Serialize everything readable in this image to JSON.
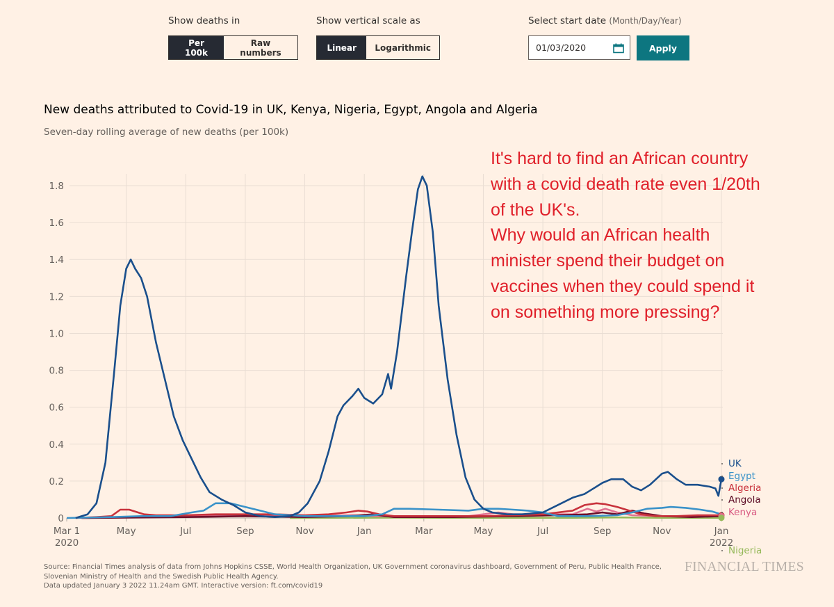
{
  "controls": {
    "deaths_label": "Show deaths in",
    "deaths_options": [
      "Per 100k",
      "Raw numbers"
    ],
    "deaths_selected": "Per 100k",
    "scale_label": "Show vertical scale as",
    "scale_options": [
      "Linear",
      "Logarithmic"
    ],
    "scale_selected": "Linear",
    "date_label": "Select start date",
    "date_hint": "(Month/Day/Year)",
    "date_value": "01/03/2020",
    "calendar_icon": "calendar-icon",
    "apply_label": "Apply"
  },
  "annotation": "It's hard to find an African country\nwith a covid death rate even 1/20th\nof the UK's.\nWhy would an African health\nminister spend their budget on\nvaccines when they could spend it\non something more pressing?",
  "footer": {
    "source_lines": [
      "Source: Financial Times analysis of data from Johns Hopkins CSSE, World Health Organization, UK Government coronavirus dashboard, Government of Peru, Public Health France,",
      "Slovenian Ministry of Health and the Swedish Public Health Agency.",
      "Data updated January 3 2022 11.24am GMT. Interactive version: ft.com/covid19"
    ],
    "logo": "FINANCIAL TIMES"
  },
  "chart_data": {
    "type": "line",
    "title": "New deaths attributed to Covid-19 in UK, Kenya, Nigeria, Egypt, Angola and Algeria",
    "subtitle": "Seven-day rolling average of new deaths (per 100k)",
    "xlabel": "",
    "ylabel": "",
    "ylim": [
      0,
      1.8
    ],
    "yticks": [
      0,
      0.2,
      0.4,
      0.6,
      0.8,
      1.0,
      1.2,
      1.4,
      1.6,
      1.8
    ],
    "ytick_labels": [
      "0",
      "0.2",
      "0.4",
      "0.6",
      "0.8",
      "1.0",
      "1.2",
      "1.4",
      "1.6",
      "1.8"
    ],
    "x_unit": "months since Mar 1 2020",
    "xlim": [
      0,
      22
    ],
    "xticks": [
      0,
      2,
      4,
      6,
      8,
      10,
      12,
      14,
      16,
      18,
      20,
      22
    ],
    "xtick_labels": [
      [
        "Mar 1",
        "2020"
      ],
      [
        "May"
      ],
      [
        "Jul"
      ],
      [
        "Sep"
      ],
      [
        "Nov"
      ],
      [
        "Jan"
      ],
      [
        "Mar"
      ],
      [
        "May"
      ],
      [
        "Jul"
      ],
      [
        "Sep"
      ],
      [
        "Nov"
      ],
      [
        "Jan",
        "2022"
      ]
    ],
    "grid": true,
    "legend": "right-end labels",
    "series": [
      {
        "name": "UK",
        "color": "#1a4f8c",
        "label_color": "#1a4f8c",
        "endpoint_marker": true,
        "points": [
          [
            0.3,
            0
          ],
          [
            0.7,
            0.02
          ],
          [
            1.0,
            0.08
          ],
          [
            1.3,
            0.3
          ],
          [
            1.6,
            0.8
          ],
          [
            1.8,
            1.15
          ],
          [
            2.0,
            1.35
          ],
          [
            2.15,
            1.4
          ],
          [
            2.3,
            1.35
          ],
          [
            2.5,
            1.3
          ],
          [
            2.7,
            1.2
          ],
          [
            3.0,
            0.95
          ],
          [
            3.3,
            0.75
          ],
          [
            3.6,
            0.55
          ],
          [
            3.9,
            0.42
          ],
          [
            4.2,
            0.32
          ],
          [
            4.5,
            0.22
          ],
          [
            4.8,
            0.14
          ],
          [
            5.2,
            0.1
          ],
          [
            5.6,
            0.07
          ],
          [
            6.0,
            0.03
          ],
          [
            6.5,
            0.01
          ],
          [
            7.0,
            0.005
          ],
          [
            7.5,
            0.01
          ],
          [
            7.8,
            0.03
          ],
          [
            8.1,
            0.08
          ],
          [
            8.5,
            0.2
          ],
          [
            8.8,
            0.36
          ],
          [
            9.1,
            0.55
          ],
          [
            9.3,
            0.61
          ],
          [
            9.6,
            0.66
          ],
          [
            9.8,
            0.7
          ],
          [
            10.0,
            0.65
          ],
          [
            10.3,
            0.62
          ],
          [
            10.6,
            0.67
          ],
          [
            10.8,
            0.78
          ],
          [
            10.9,
            0.7
          ],
          [
            11.1,
            0.9
          ],
          [
            11.4,
            1.3
          ],
          [
            11.6,
            1.55
          ],
          [
            11.8,
            1.78
          ],
          [
            11.95,
            1.85
          ],
          [
            12.1,
            1.8
          ],
          [
            12.3,
            1.55
          ],
          [
            12.5,
            1.15
          ],
          [
            12.8,
            0.75
          ],
          [
            13.1,
            0.45
          ],
          [
            13.4,
            0.22
          ],
          [
            13.7,
            0.1
          ],
          [
            14.0,
            0.05
          ],
          [
            14.3,
            0.03
          ],
          [
            14.8,
            0.02
          ],
          [
            15.3,
            0.02
          ],
          [
            16.0,
            0.03
          ],
          [
            16.5,
            0.07
          ],
          [
            17.0,
            0.11
          ],
          [
            17.4,
            0.13
          ],
          [
            17.6,
            0.15
          ],
          [
            17.8,
            0.17
          ],
          [
            18.0,
            0.19
          ],
          [
            18.3,
            0.21
          ],
          [
            18.7,
            0.21
          ],
          [
            19.0,
            0.17
          ],
          [
            19.3,
            0.15
          ],
          [
            19.6,
            0.18
          ],
          [
            20.0,
            0.24
          ],
          [
            20.2,
            0.25
          ],
          [
            20.5,
            0.21
          ],
          [
            20.8,
            0.18
          ],
          [
            21.2,
            0.18
          ],
          [
            21.6,
            0.17
          ],
          [
            21.8,
            0.16
          ],
          [
            21.9,
            0.12
          ],
          [
            22.0,
            0.21
          ]
        ]
      },
      {
        "name": "Egypt",
        "color": "#3a92c9",
        "label_color": "#3a92c9",
        "endpoint_marker": false,
        "points": [
          [
            0,
            0
          ],
          [
            1.5,
            0.005
          ],
          [
            2.5,
            0.01
          ],
          [
            3.5,
            0.01
          ],
          [
            4.2,
            0.03
          ],
          [
            4.6,
            0.04
          ],
          [
            5.0,
            0.08
          ],
          [
            5.5,
            0.08
          ],
          [
            6.0,
            0.06
          ],
          [
            6.5,
            0.04
          ],
          [
            7.0,
            0.02
          ],
          [
            8.0,
            0.01
          ],
          [
            9.0,
            0.01
          ],
          [
            10.0,
            0.01
          ],
          [
            10.6,
            0.02
          ],
          [
            11.0,
            0.05
          ],
          [
            11.5,
            0.05
          ],
          [
            12.5,
            0.045
          ],
          [
            13.5,
            0.04
          ],
          [
            14.0,
            0.05
          ],
          [
            14.5,
            0.05
          ],
          [
            15.0,
            0.045
          ],
          [
            15.5,
            0.04
          ],
          [
            16.0,
            0.03
          ],
          [
            16.5,
            0.01
          ],
          [
            17.5,
            0.01
          ],
          [
            18.5,
            0.015
          ],
          [
            19.0,
            0.03
          ],
          [
            19.5,
            0.05
          ],
          [
            20.0,
            0.055
          ],
          [
            20.3,
            0.06
          ],
          [
            20.8,
            0.055
          ],
          [
            21.3,
            0.045
          ],
          [
            21.7,
            0.035
          ],
          [
            22.0,
            0.02
          ]
        ]
      },
      {
        "name": "Algeria",
        "color": "#c8323c",
        "label_color": "#c8323c",
        "endpoint_marker": true,
        "points": [
          [
            0.3,
            0
          ],
          [
            1.0,
            0.005
          ],
          [
            1.5,
            0.01
          ],
          [
            1.8,
            0.045
          ],
          [
            2.1,
            0.045
          ],
          [
            2.6,
            0.02
          ],
          [
            3.0,
            0.015
          ],
          [
            4.0,
            0.015
          ],
          [
            5.0,
            0.02
          ],
          [
            6.0,
            0.02
          ],
          [
            7.0,
            0.02
          ],
          [
            8.0,
            0.015
          ],
          [
            8.8,
            0.02
          ],
          [
            9.4,
            0.03
          ],
          [
            9.8,
            0.04
          ],
          [
            10.1,
            0.035
          ],
          [
            10.5,
            0.02
          ],
          [
            11.0,
            0.01
          ],
          [
            12.0,
            0.01
          ],
          [
            13.0,
            0.01
          ],
          [
            14.0,
            0.01
          ],
          [
            15.0,
            0.015
          ],
          [
            16.0,
            0.02
          ],
          [
            17.0,
            0.04
          ],
          [
            17.4,
            0.07
          ],
          [
            17.8,
            0.08
          ],
          [
            18.1,
            0.075
          ],
          [
            18.5,
            0.06
          ],
          [
            18.9,
            0.04
          ],
          [
            19.3,
            0.02
          ],
          [
            19.8,
            0.01
          ],
          [
            20.5,
            0.01
          ],
          [
            21.2,
            0.015
          ],
          [
            22.0,
            0.015
          ]
        ]
      },
      {
        "name": "Angola",
        "color": "#6e0f2a",
        "label_color": "#5a0a24",
        "endpoint_marker": false,
        "points": [
          [
            0.5,
            0
          ],
          [
            2.0,
            0.002
          ],
          [
            4.0,
            0.005
          ],
          [
            6.0,
            0.01
          ],
          [
            8.0,
            0.005
          ],
          [
            9.5,
            0.01
          ],
          [
            10.3,
            0.02
          ],
          [
            11.0,
            0.005
          ],
          [
            13.0,
            0.005
          ],
          [
            15.0,
            0.01
          ],
          [
            16.5,
            0.015
          ],
          [
            17.5,
            0.02
          ],
          [
            18.0,
            0.03
          ],
          [
            18.5,
            0.02
          ],
          [
            19.0,
            0.04
          ],
          [
            19.4,
            0.025
          ],
          [
            20.0,
            0.01
          ],
          [
            21.0,
            0.005
          ],
          [
            22.0,
            0.01
          ]
        ]
      },
      {
        "name": "Kenya",
        "color": "#e07191",
        "label_color": "#d85a82",
        "endpoint_marker": true,
        "points": [
          [
            0.5,
            0
          ],
          [
            2.5,
            0.005
          ],
          [
            4.5,
            0.01
          ],
          [
            6.0,
            0.012
          ],
          [
            8.0,
            0.01
          ],
          [
            9.5,
            0.015
          ],
          [
            10.5,
            0.01
          ],
          [
            12.0,
            0.005
          ],
          [
            13.5,
            0.01
          ],
          [
            14.5,
            0.03
          ],
          [
            15.0,
            0.02
          ],
          [
            16.0,
            0.02
          ],
          [
            17.0,
            0.02
          ],
          [
            17.5,
            0.05
          ],
          [
            17.8,
            0.035
          ],
          [
            18.1,
            0.05
          ],
          [
            18.5,
            0.03
          ],
          [
            19.0,
            0.015
          ],
          [
            20.0,
            0.01
          ],
          [
            21.0,
            0.01
          ],
          [
            22.0,
            0.01
          ]
        ]
      },
      {
        "name": "Nigeria",
        "color": "#96b95a",
        "label_color": "#96b95a",
        "endpoint_marker": true,
        "points": [
          [
            7.5,
            0
          ],
          [
            9.0,
            0.001
          ],
          [
            11.0,
            0.002
          ],
          [
            13.0,
            0.001
          ],
          [
            15.0,
            0.001
          ],
          [
            17.0,
            0.001
          ],
          [
            18.5,
            0.003
          ],
          [
            20.0,
            0.001
          ],
          [
            22.0,
            0.001
          ]
        ]
      }
    ]
  }
}
